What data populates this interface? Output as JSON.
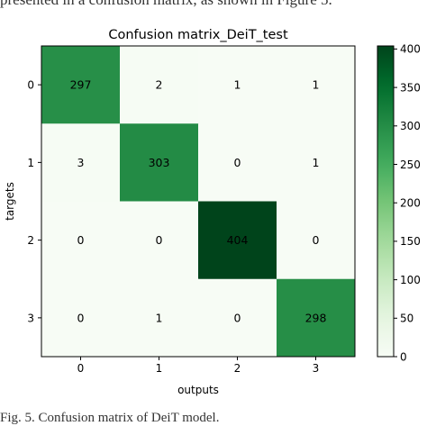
{
  "surrounding_text": {
    "top": "presented in a confusion matrix, as shown in Figure 5.",
    "bottom": "Fig. 5.   Confusion matrix of DeiT model."
  },
  "colors": {
    "cmap_low": "#f7fcf5",
    "cmap_high": "#00441b",
    "text": "#000000"
  },
  "chart_data": {
    "type": "heatmap",
    "title": "Confusion matrix_DeiT_test",
    "xlabel": "outputs",
    "ylabel": "targets",
    "x_categories": [
      "0",
      "1",
      "2",
      "3"
    ],
    "y_categories": [
      "0",
      "1",
      "2",
      "3"
    ],
    "values": [
      [
        297,
        2,
        1,
        1
      ],
      [
        3,
        303,
        0,
        1
      ],
      [
        0,
        0,
        404,
        0
      ],
      [
        0,
        1,
        0,
        298
      ]
    ],
    "colorbar": {
      "min": 0,
      "max": 404,
      "ticks": [
        0,
        50,
        100,
        150,
        200,
        250,
        300,
        350,
        400
      ]
    },
    "grid": false,
    "colormap": "Greens"
  }
}
